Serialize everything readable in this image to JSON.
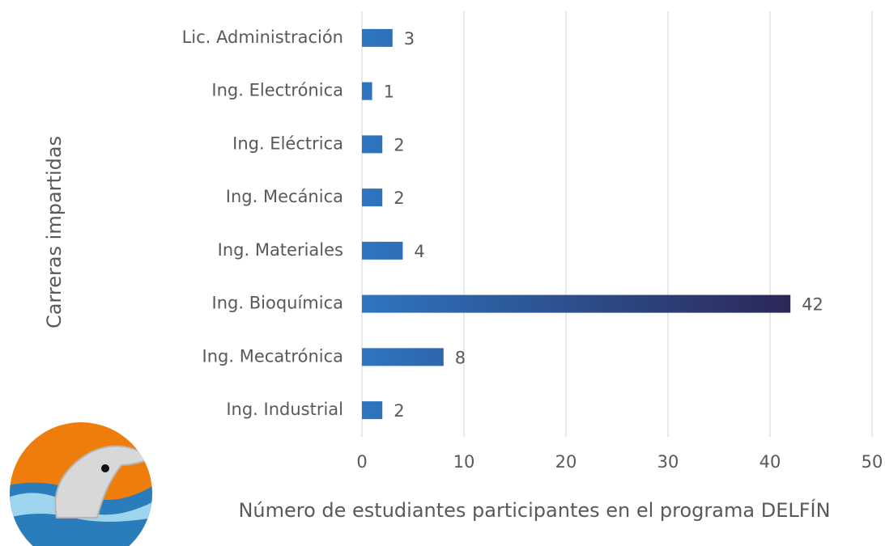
{
  "chart_data": {
    "type": "bar",
    "orientation": "horizontal",
    "categories": [
      "Lic. Administración",
      "Ing. Electrónica",
      "Ing. Eléctrica",
      "Ing. Mecánica",
      "Ing. Materiales",
      "Ing. Bioquímica",
      "Ing. Mecatrónica",
      "Ing. Industrial"
    ],
    "values": [
      3,
      1,
      2,
      2,
      4,
      42,
      8,
      2
    ],
    "color": "#2e75c0",
    "gradient_end_color": "#2b2757",
    "xlim": [
      0,
      50
    ],
    "xticks": [
      0,
      10,
      20,
      30,
      40,
      50
    ],
    "grid": true,
    "x_label": "Número de estudiantes participantes en el programa DELFÍN",
    "y_label": "Carreras impartidas"
  }
}
